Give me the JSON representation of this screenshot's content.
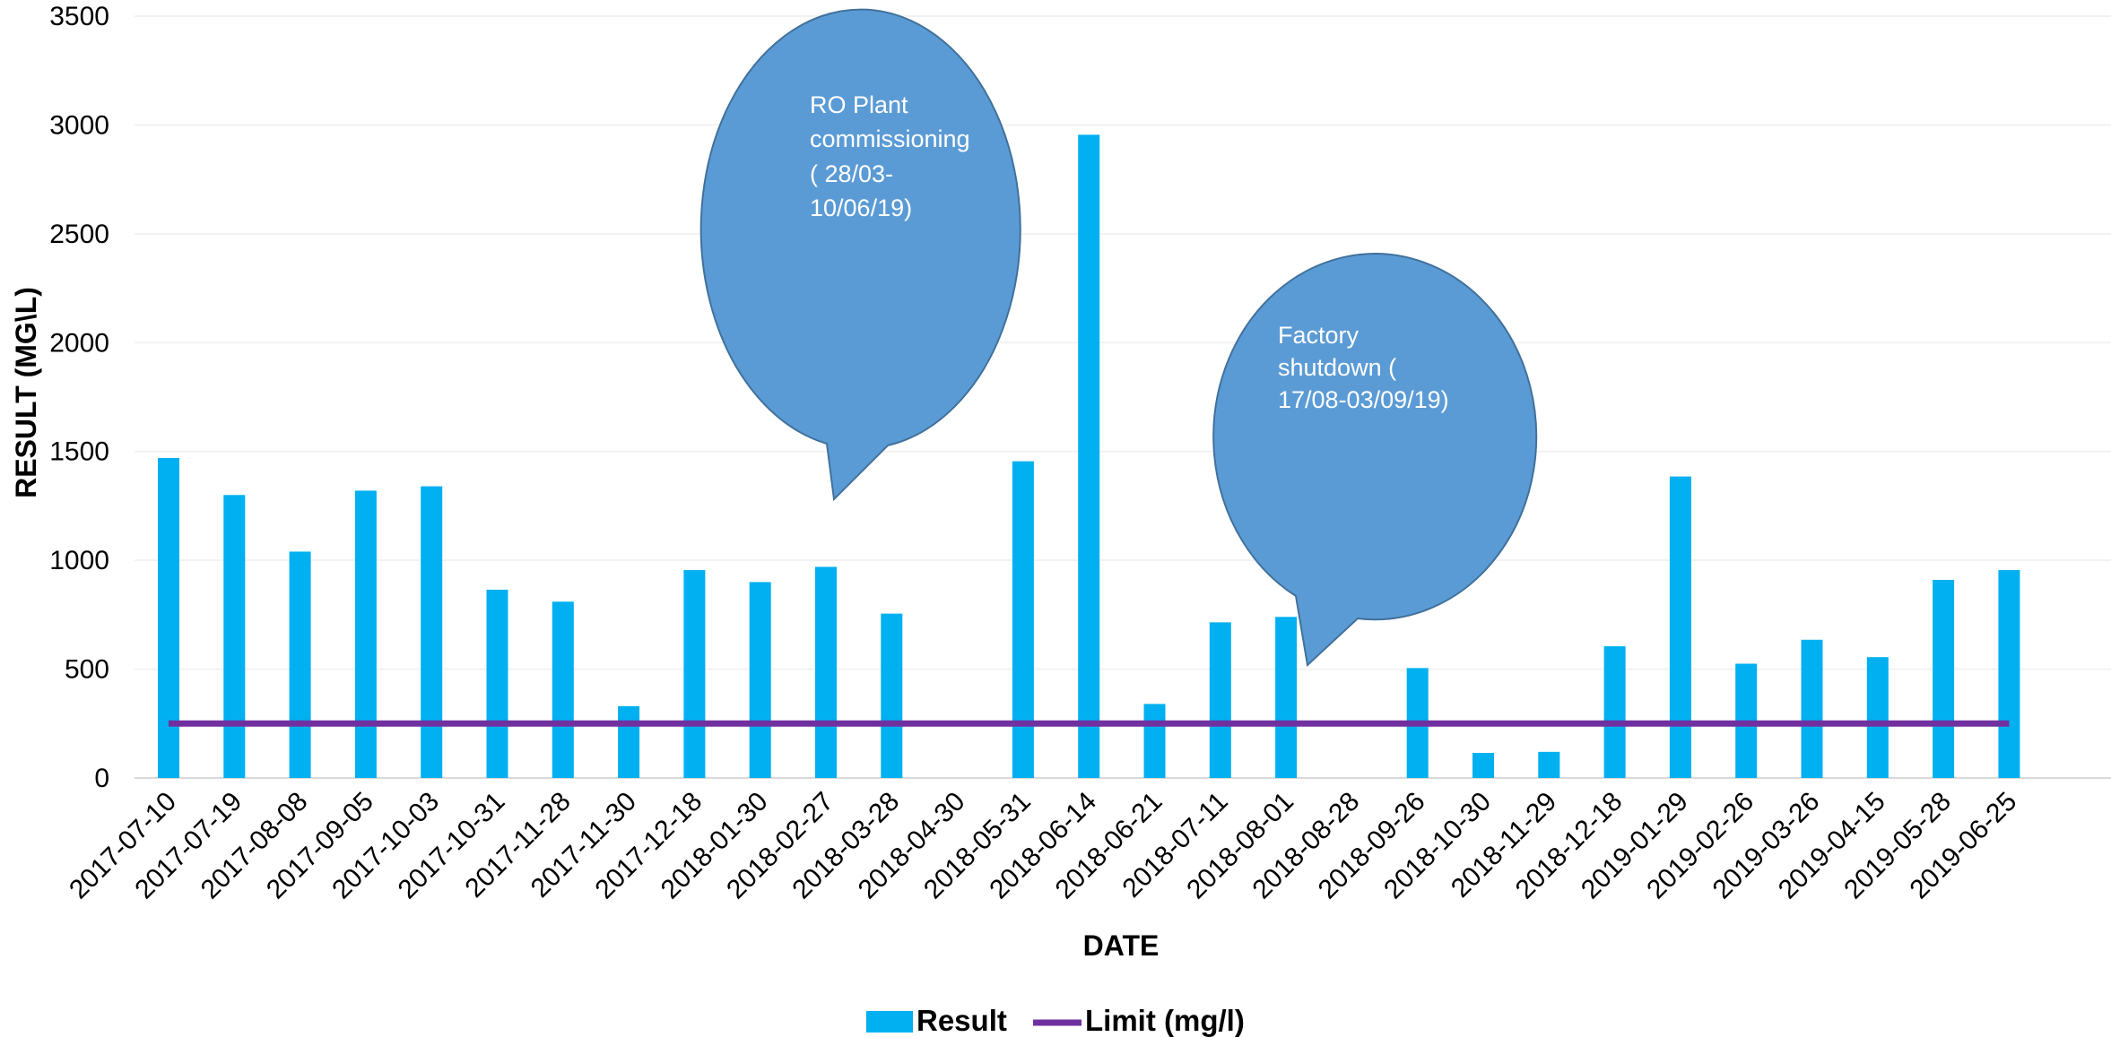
{
  "chart_data": {
    "type": "bar",
    "xlabel": "DATE",
    "ylabel": "RESULT (MG\\L)",
    "ylim": [
      0,
      3500
    ],
    "yticks": [
      0,
      500,
      1000,
      1500,
      2000,
      2500,
      3000,
      3500
    ],
    "grid": true,
    "legend_position": "bottom",
    "categories": [
      "2017-07-10",
      "2017-07-19",
      "2017-08-08",
      "2017-09-05",
      "2017-10-03",
      "2017-10-31",
      "2017-11-28",
      "2017-11-30",
      "2017-12-18",
      "2018-01-30",
      "2018-02-27",
      "2018-03-28",
      "2018-04-30",
      "2018-05-31",
      "2018-06-14",
      "2018-06-21",
      "2018-07-11",
      "2018-08-01",
      "2018-08-28",
      "2018-09-26",
      "2018-10-30",
      "2018-11-29",
      "2018-12-18",
      "2019-01-29",
      "2019-02-26",
      "2019-03-26",
      "2019-04-15",
      "2019-05-28",
      "2019-06-25"
    ],
    "series": [
      {
        "name": "Result",
        "type": "bar",
        "color": "#00b0f0",
        "values": [
          1470,
          1300,
          1040,
          1320,
          1340,
          865,
          810,
          330,
          955,
          900,
          970,
          755,
          null,
          1455,
          2955,
          340,
          715,
          740,
          null,
          505,
          115,
          120,
          605,
          1385,
          525,
          635,
          555,
          910,
          955
        ]
      },
      {
        "name": "Limit (mg/l)",
        "type": "line",
        "color": "#7030a0",
        "values": [
          250,
          250,
          250,
          250,
          250,
          250,
          250,
          250,
          250,
          250,
          250,
          250,
          250,
          250,
          250,
          250,
          250,
          250,
          250,
          250,
          250,
          250,
          250,
          250,
          250,
          250,
          250,
          250,
          250
        ]
      }
    ],
    "annotations": [
      {
        "lines": [
          "RO Plant",
          "commissioning",
          "( 28/03-",
          "10/06/19)"
        ],
        "color": "#5b9bd5"
      },
      {
        "lines": [
          "Factory",
          "shutdown (",
          "17/08-03/09/19)"
        ],
        "color": "#5b9bd5"
      }
    ]
  }
}
